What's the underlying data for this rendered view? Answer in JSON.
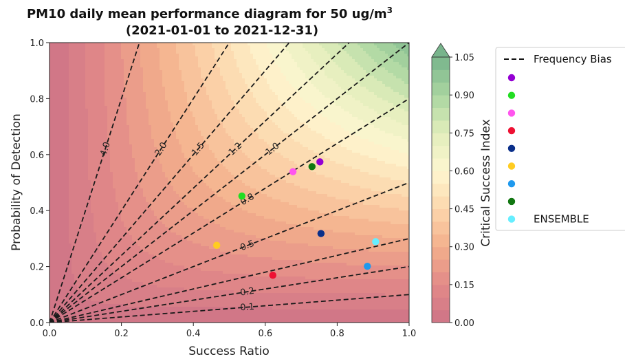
{
  "chart_data": {
    "type": "scatter",
    "title": "PM10 daily mean performance diagram for 50 ug/m",
    "title_sup": "3",
    "subtitle": "(2021-01-01 to 2021-12-31)",
    "xlabel": "Success Ratio",
    "ylabel": "Probability of Detection",
    "xlim": [
      0.0,
      1.0
    ],
    "ylim": [
      0.0,
      1.0
    ],
    "xticks": [
      "0.0",
      "0.2",
      "0.4",
      "0.6",
      "0.8",
      "1.0"
    ],
    "yticks": [
      "0.0",
      "0.2",
      "0.4",
      "0.6",
      "0.8",
      "1.0"
    ],
    "colorbar": {
      "label": "Critical Success Index",
      "ticks": [
        "0.00",
        "0.15",
        "0.30",
        "0.45",
        "0.60",
        "0.75",
        "0.90",
        "1.05"
      ],
      "colormap": "RdYlGn",
      "range": [
        0.0,
        1.05
      ]
    },
    "frequency_bias_lines": [
      {
        "bias": 0.1,
        "label": "0.1"
      },
      {
        "bias": 0.2,
        "label": "0.2"
      },
      {
        "bias": 0.3,
        "label": ""
      },
      {
        "bias": 0.5,
        "label": "0.5"
      },
      {
        "bias": 0.8,
        "label": "0.8"
      },
      {
        "bias": 1.0,
        "label": "1.0"
      },
      {
        "bias": 1.2,
        "label": "1.2"
      },
      {
        "bias": 1.5,
        "label": "1.5"
      },
      {
        "bias": 2.0,
        "label": "2.0"
      },
      {
        "bias": 4.0,
        "label": "4.0"
      }
    ],
    "points": [
      {
        "x": 0.752,
        "y": 0.574,
        "color": "#9400d3",
        "label": ""
      },
      {
        "x": 0.535,
        "y": 0.452,
        "color": "#22dd22",
        "label": ""
      },
      {
        "x": 0.677,
        "y": 0.539,
        "color": "#ff55ee",
        "label": ""
      },
      {
        "x": 0.621,
        "y": 0.169,
        "color": "#ee1133",
        "label": ""
      },
      {
        "x": 0.755,
        "y": 0.318,
        "color": "#0a2f8a",
        "label": ""
      },
      {
        "x": 0.465,
        "y": 0.276,
        "color": "#ffcc22",
        "label": ""
      },
      {
        "x": 0.884,
        "y": 0.201,
        "color": "#1f99ee",
        "label": ""
      },
      {
        "x": 0.73,
        "y": 0.557,
        "color": "#117711",
        "label": ""
      },
      {
        "x": 0.907,
        "y": 0.289,
        "color": "#66eeff",
        "label": "ENSEMBLE"
      }
    ],
    "legend": {
      "placement": "outside-right",
      "line_label": "Frequency Bias"
    }
  }
}
